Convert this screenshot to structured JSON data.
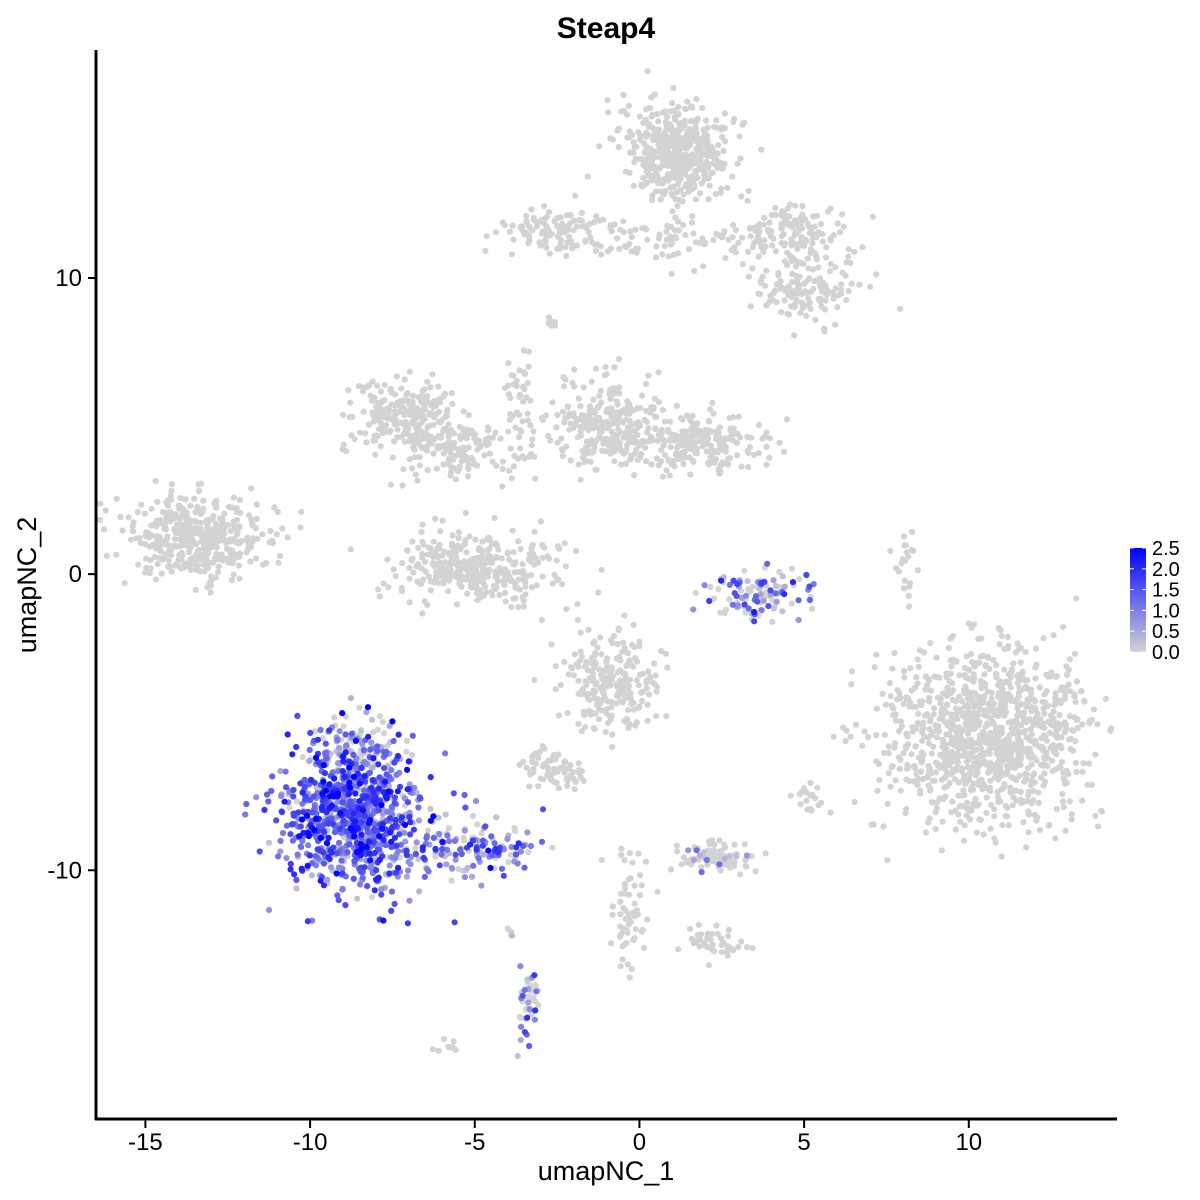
{
  "chart_data": {
    "type": "scatter",
    "title": "Steap4",
    "xlabel": "umapNC_1",
    "ylabel": "umapNC_2",
    "xlim": [
      -16.5,
      14.5
    ],
    "ylim": [
      -18.4,
      17.7
    ],
    "x_ticks": [
      -15,
      -10,
      -5,
      0,
      5,
      10
    ],
    "y_ticks": [
      -10,
      0,
      10
    ],
    "x_tick_labels": [
      "-15",
      "-10",
      "-5",
      "0",
      "5",
      "10"
    ],
    "y_tick_labels": [
      "-10",
      "0",
      "10"
    ],
    "legend": {
      "position": "right",
      "ticks": [
        2.5,
        2.0,
        1.5,
        1.0,
        0.5,
        0.0
      ],
      "tick_labels": [
        "2.5",
        "2.0",
        "1.5",
        "1.0",
        "0.5",
        "0.0"
      ],
      "range": [
        0,
        2.5
      ],
      "colors": {
        "low": "#d3d3d3",
        "high": "#0000ff"
      }
    },
    "clusters": [
      {
        "cx": -13.5,
        "cy": 1.2,
        "sx": 1.1,
        "sy": 0.7,
        "n": 420,
        "expr": 0
      },
      {
        "cx": -7.2,
        "cy": 5.4,
        "sx": 0.8,
        "sy": 0.6,
        "n": 220,
        "expr": 0
      },
      {
        "cx": -5.4,
        "cy": 4.2,
        "sx": 1.0,
        "sy": 0.5,
        "n": 150,
        "expr": 0
      },
      {
        "cx": -5.0,
        "cy": 0.2,
        "sx": 1.2,
        "sy": 0.6,
        "n": 360,
        "expr": 0
      },
      {
        "cx": -3.6,
        "cy": 5.8,
        "sx": 0.25,
        "sy": 1.2,
        "n": 40,
        "expr": 0
      },
      {
        "cx": -1.0,
        "cy": 5.0,
        "sx": 0.8,
        "sy": 0.8,
        "n": 260,
        "expr": 0
      },
      {
        "cx": 1.8,
        "cy": 4.4,
        "sx": 1.1,
        "sy": 0.5,
        "n": 220,
        "expr": 0
      },
      {
        "cx": 1.2,
        "cy": 14.2,
        "sx": 0.8,
        "sy": 0.8,
        "n": 480,
        "expr": 0
      },
      {
        "cx": -2.5,
        "cy": 11.6,
        "sx": 0.8,
        "sy": 0.35,
        "n": 110,
        "expr": 0
      },
      {
        "cx": 0.8,
        "cy": 11.2,
        "sx": 1.4,
        "sy": 0.35,
        "n": 80,
        "expr": 0
      },
      {
        "cx": 4.6,
        "cy": 11.5,
        "sx": 0.9,
        "sy": 0.5,
        "n": 130,
        "expr": 0
      },
      {
        "cx": 5.2,
        "cy": 9.6,
        "sx": 0.8,
        "sy": 0.5,
        "n": 130,
        "expr": 0
      },
      {
        "cx": -0.8,
        "cy": -3.6,
        "sx": 0.7,
        "sy": 0.8,
        "n": 240,
        "expr": 0
      },
      {
        "cx": -2.6,
        "cy": -6.6,
        "sx": 0.5,
        "sy": 0.3,
        "n": 70,
        "expr": 0
      },
      {
        "cx": 2.3,
        "cy": -9.6,
        "sx": 0.6,
        "sy": 0.25,
        "n": 90,
        "expr": 0.1
      },
      {
        "cx": -0.3,
        "cy": -11.3,
        "sx": 0.3,
        "sy": 1.1,
        "n": 60,
        "expr": 0
      },
      {
        "cx": 2.2,
        "cy": -12.4,
        "sx": 0.5,
        "sy": 0.3,
        "n": 40,
        "expr": 0
      },
      {
        "cx": 10.6,
        "cy": -5.5,
        "sx": 1.6,
        "sy": 1.5,
        "n": 1100,
        "expr": 0
      },
      {
        "cx": 3.5,
        "cy": -0.6,
        "sx": 0.8,
        "sy": 0.45,
        "n": 110,
        "expr": 0.55
      },
      {
        "cx": -8.7,
        "cy": -8.2,
        "sx": 1.1,
        "sy": 1.2,
        "n": 900,
        "expr": 0.9
      },
      {
        "cx": -8.5,
        "cy": -6.2,
        "sx": 0.6,
        "sy": 0.7,
        "n": 110,
        "expr": 0.3
      },
      {
        "cx": -5.0,
        "cy": -9.3,
        "sx": 0.9,
        "sy": 0.5,
        "n": 130,
        "expr": 0.6
      },
      {
        "cx": -3.4,
        "cy": -14.5,
        "sx": 0.2,
        "sy": 0.7,
        "n": 40,
        "expr": 0.6
      },
      {
        "cx": -3.9,
        "cy": -12.1,
        "sx": 0.08,
        "sy": 0.15,
        "n": 5,
        "expr": 0.5
      },
      {
        "cx": 8.1,
        "cy": 0.4,
        "sx": 0.2,
        "sy": 0.6,
        "n": 20,
        "expr": 0
      },
      {
        "cx": 5.1,
        "cy": -7.6,
        "sx": 0.25,
        "sy": 0.25,
        "n": 18,
        "expr": 0
      },
      {
        "cx": -5.9,
        "cy": -16.0,
        "sx": 0.2,
        "sy": 0.12,
        "n": 8,
        "expr": 0
      },
      {
        "cx": -2.7,
        "cy": 8.5,
        "sx": 0.15,
        "sy": 0.1,
        "n": 8,
        "expr": 0
      }
    ]
  }
}
